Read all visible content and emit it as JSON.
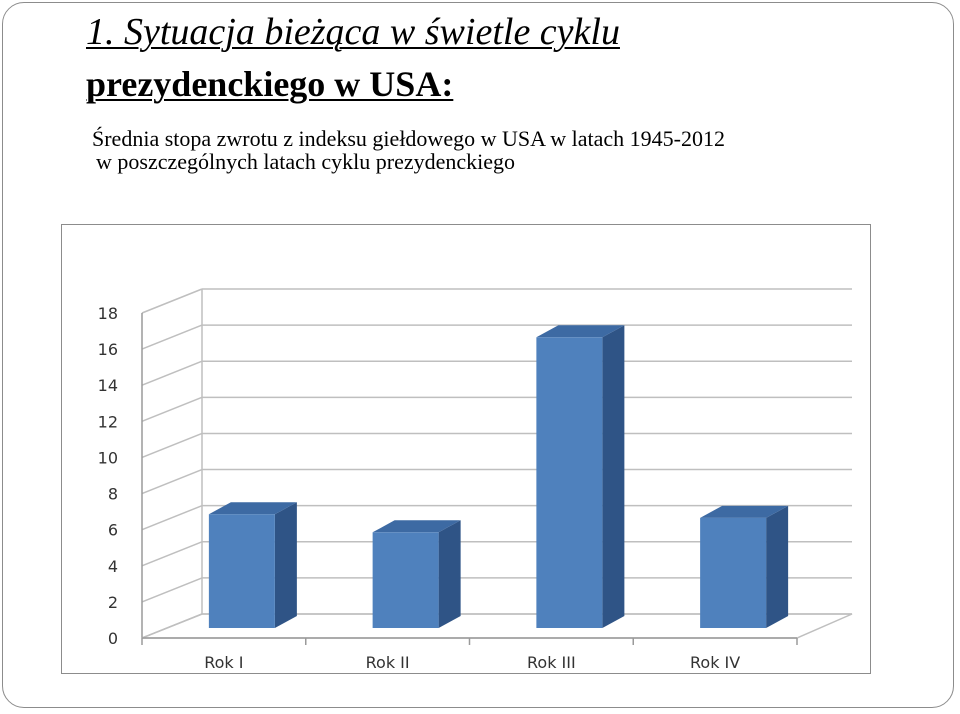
{
  "slide": {
    "title_line1": "1. Sytuacja bieżąca w świetle cyklu",
    "title_line2": "prezydenckiego w USA:",
    "subtitle_line1": "Średnia stopa zwrotu z indeksu giełdowego w USA w latach 1945-2012",
    "subtitle_line2": "w poszczególnych latach cyklu prezydenckiego"
  },
  "chart_data": {
    "type": "bar",
    "style": "3d-column",
    "categories": [
      "Rok I",
      "Rok II",
      "Rok III",
      "Rok IV"
    ],
    "values": [
      6.3,
      5.3,
      16.1,
      6.1
    ],
    "ylim": [
      0,
      18
    ],
    "yticks": [
      0,
      2,
      4,
      6,
      8,
      10,
      12,
      14,
      16,
      18
    ],
    "grid": true,
    "legend": "none",
    "colors": {
      "bar_front": "#4f81bd",
      "bar_top": "#3d6aa3",
      "bar_side": "#2f5486",
      "grid": "#bfbfbf"
    }
  }
}
